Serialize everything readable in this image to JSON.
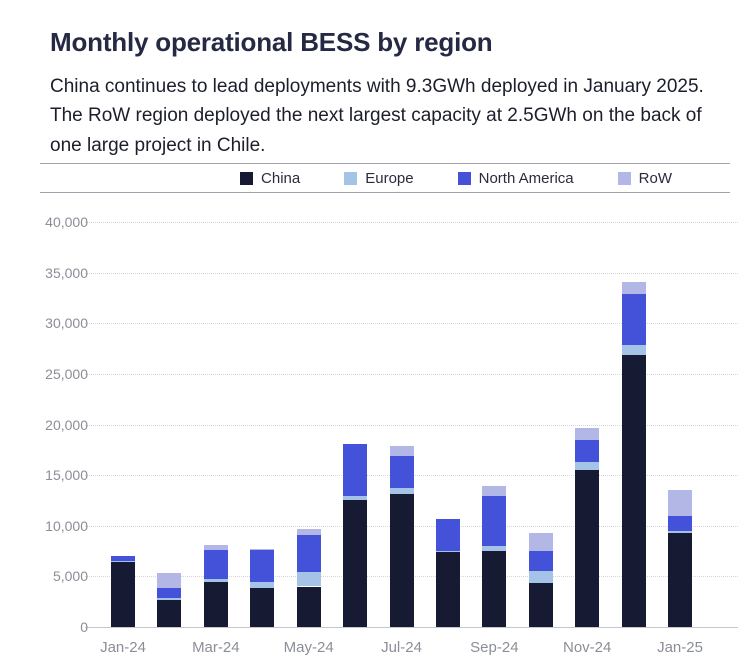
{
  "header": {
    "title": "Monthly operational BESS by region",
    "subtitle": "China continues to lead deployments with 9.3GWh deployed in January 2025. The RoW region deployed the next largest capacity at 2.5GWh on the back of one large project in Chile."
  },
  "colors": {
    "china": "#171a33",
    "europe": "#a5c3e6",
    "north_america": "#4352d9",
    "row": "#b3b7e6",
    "title_text": "#262944",
    "axis_text": "#8b8e97",
    "gridline": "#d6d7dd",
    "rule": "#9fa3ad"
  },
  "chart_data": {
    "type": "bar",
    "stacked": true,
    "title": "Monthly operational BESS by region",
    "unit": "MWh",
    "categories": [
      "Jan-24",
      "Feb-24",
      "Mar-24",
      "Apr-24",
      "May-24",
      "Jun-24",
      "Jul-24",
      "Aug-24",
      "Sep-24",
      "Oct-24",
      "Nov-24",
      "Dec-24",
      "Jan-25"
    ],
    "x_tick_labels": [
      "Jan-24",
      "Mar-24",
      "May-24",
      "Jul-24",
      "Sep-24",
      "Nov-24",
      "Jan-25"
    ],
    "series": [
      {
        "name": "China",
        "color": "#171a33",
        "values": [
          6400,
          2700,
          4400,
          3900,
          4000,
          12500,
          13100,
          7400,
          7500,
          4300,
          15500,
          26900,
          9300
        ]
      },
      {
        "name": "Europe",
        "color": "#a5c3e6",
        "values": [
          150,
          150,
          300,
          550,
          1400,
          400,
          600,
          100,
          500,
          1200,
          800,
          1000,
          200
        ]
      },
      {
        "name": "North America",
        "color": "#4352d9",
        "values": [
          450,
          1000,
          2900,
          3200,
          3700,
          5200,
          3200,
          3200,
          4900,
          2000,
          2200,
          5000,
          1500
        ]
      },
      {
        "name": "RoW",
        "color": "#b3b7e6",
        "values": [
          0,
          1500,
          500,
          100,
          600,
          0,
          1000,
          0,
          1000,
          1800,
          1200,
          1200,
          2500
        ]
      }
    ],
    "totals": [
      7000,
      5350,
      8100,
      7750,
      9700,
      18100,
      17900,
      10700,
      13900,
      9300,
      19700,
      34100,
      13500
    ],
    "ylim": [
      0,
      40000
    ],
    "y_tick_step": 5000,
    "y_tick_labels": [
      "0",
      "5,000",
      "10,000",
      "15,000",
      "20,000",
      "25,000",
      "30,000",
      "35,000",
      "40,000"
    ],
    "grid": "horizontal-dotted",
    "legend_position": "top"
  }
}
